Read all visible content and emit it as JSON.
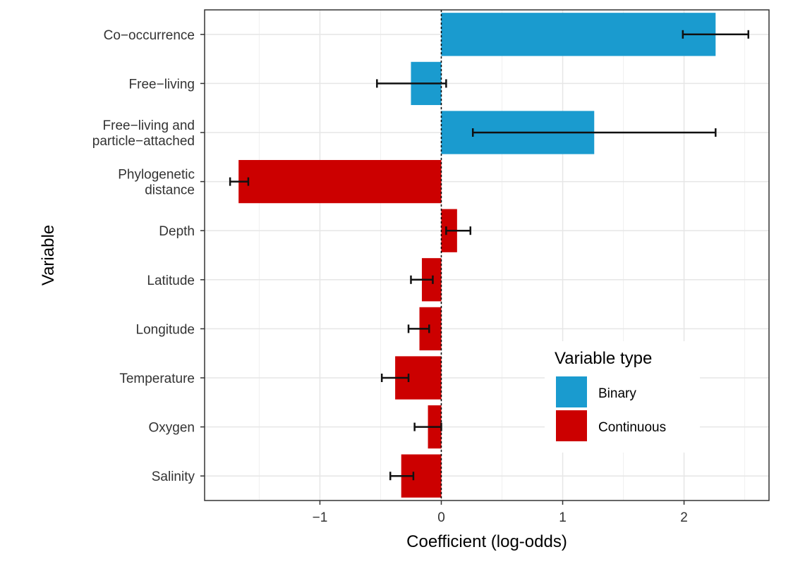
{
  "chart_data": {
    "type": "bar",
    "orientation": "horizontal",
    "title": "",
    "xlabel": "Coefficient (log-odds)",
    "ylabel": "Variable",
    "xlim": [
      -1.95,
      2.7
    ],
    "xticks": [
      -1,
      0,
      1,
      2
    ],
    "xtick_labels": [
      "−1",
      "0",
      "1",
      "2"
    ],
    "grid": true,
    "categories": [
      {
        "label": [
          "Co−occurrence"
        ],
        "value": 2.26,
        "lo": 1.99,
        "hi": 2.53,
        "type": "Binary"
      },
      {
        "label": [
          "Free−living"
        ],
        "value": -0.25,
        "lo": -0.53,
        "hi": 0.04,
        "type": "Binary"
      },
      {
        "label": [
          "Free−living and",
          "particle−attached"
        ],
        "value": 1.26,
        "lo": 0.26,
        "hi": 2.26,
        "type": "Binary"
      },
      {
        "label": [
          "Phylogenetic",
          "distance"
        ],
        "value": -1.67,
        "lo": -1.74,
        "hi": -1.59,
        "type": "Continuous"
      },
      {
        "label": [
          "Depth"
        ],
        "value": 0.13,
        "lo": 0.04,
        "hi": 0.24,
        "type": "Continuous"
      },
      {
        "label": [
          "Latitude"
        ],
        "value": -0.16,
        "lo": -0.25,
        "hi": -0.07,
        "type": "Continuous"
      },
      {
        "label": [
          "Longitude"
        ],
        "value": -0.18,
        "lo": -0.27,
        "hi": -0.1,
        "type": "Continuous"
      },
      {
        "label": [
          "Temperature"
        ],
        "value": -0.38,
        "lo": -0.49,
        "hi": -0.27,
        "type": "Continuous"
      },
      {
        "label": [
          "Oxygen"
        ],
        "value": -0.11,
        "lo": -0.22,
        "hi": 0.0,
        "type": "Continuous"
      },
      {
        "label": [
          "Salinity"
        ],
        "value": -0.33,
        "lo": -0.42,
        "hi": -0.23,
        "type": "Continuous"
      }
    ],
    "legend": {
      "title": "Variable type",
      "placement": "bottom-right",
      "entries": [
        {
          "name": "Binary",
          "color": "#1a9bcf"
        },
        {
          "name": "Continuous",
          "color": "#cc0000"
        }
      ]
    }
  }
}
